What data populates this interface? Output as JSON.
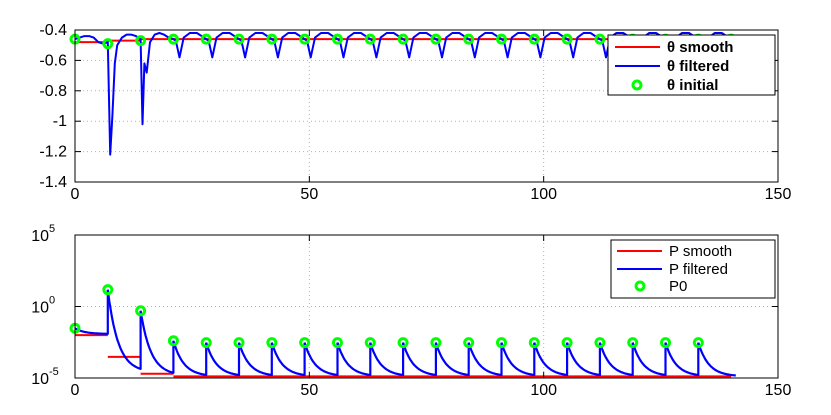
{
  "chart_data": [
    {
      "type": "line",
      "title": "",
      "xlabel": "",
      "ylabel": "",
      "xlim": [
        0,
        150
      ],
      "ylim": [
        -1.4,
        -0.4
      ],
      "xticks": [
        0,
        50,
        100,
        150
      ],
      "yticks": [
        -1.4,
        -1.2,
        -1,
        -0.8,
        -0.6,
        -0.4
      ],
      "ytick_labels": [
        "-1.4",
        "-1.2",
        "-1",
        "-0.8",
        "-0.6",
        "-0.4"
      ],
      "grid": true,
      "legend_position": "top-right",
      "series": [
        {
          "name": "θ smooth",
          "style": "step",
          "segments": [
            {
              "x0": 0,
              "x1": 7,
              "y": -0.48
            },
            {
              "x0": 7,
              "x1": 14,
              "y": -0.47
            },
            {
              "x0": 14,
              "x1": 142,
              "y": -0.46
            }
          ]
        },
        {
          "name": "θ filtered",
          "points": [
            [
              0,
              -0.46
            ],
            [
              1,
              -0.45
            ],
            [
              2,
              -0.44
            ],
            [
              3,
              -0.44
            ],
            [
              4,
              -0.45
            ],
            [
              5,
              -0.48
            ],
            [
              6,
              -0.49
            ],
            [
              7,
              -0.48
            ],
            [
              7.5,
              -1.22
            ],
            [
              8,
              -0.95
            ],
            [
              8.5,
              -0.62
            ],
            [
              9,
              -0.5
            ],
            [
              10,
              -0.45
            ],
            [
              11,
              -0.43
            ],
            [
              12,
              -0.43
            ],
            [
              13,
              -0.44
            ],
            [
              14,
              -0.46
            ],
            [
              14.4,
              -1.02
            ],
            [
              14.8,
              -0.62
            ],
            [
              15.3,
              -0.68
            ],
            [
              16,
              -0.48
            ],
            [
              17,
              -0.43
            ],
            [
              18,
              -0.42
            ],
            [
              19,
              -0.43
            ],
            [
              20,
              -0.45
            ],
            [
              21,
              -0.46
            ],
            [
              21.5,
              -0.47
            ],
            [
              22.3,
              -0.58
            ],
            [
              23.2,
              -0.45
            ],
            [
              24.5,
              -0.42
            ],
            [
              26,
              -0.42
            ],
            [
              27.5,
              -0.45
            ],
            [
              28,
              -0.46
            ],
            [
              28.5,
              -0.47
            ],
            [
              29.3,
              -0.58
            ],
            [
              30.2,
              -0.45
            ],
            [
              31.5,
              -0.42
            ],
            [
              33,
              -0.42
            ],
            [
              34.5,
              -0.45
            ],
            [
              35,
              -0.46
            ],
            [
              35.5,
              -0.47
            ],
            [
              36.3,
              -0.58
            ],
            [
              37.2,
              -0.45
            ],
            [
              38.5,
              -0.42
            ],
            [
              40,
              -0.42
            ],
            [
              41.5,
              -0.45
            ],
            [
              42,
              -0.46
            ],
            [
              42.5,
              -0.47
            ],
            [
              43.3,
              -0.58
            ],
            [
              44.2,
              -0.45
            ],
            [
              45.5,
              -0.42
            ],
            [
              47,
              -0.42
            ],
            [
              48.5,
              -0.45
            ],
            [
              49,
              -0.46
            ],
            [
              49.5,
              -0.47
            ],
            [
              50.3,
              -0.58
            ],
            [
              51.2,
              -0.45
            ],
            [
              52.5,
              -0.42
            ],
            [
              54,
              -0.42
            ],
            [
              55.5,
              -0.45
            ],
            [
              56,
              -0.46
            ],
            [
              56.5,
              -0.47
            ],
            [
              57.3,
              -0.58
            ],
            [
              58.2,
              -0.45
            ],
            [
              59.5,
              -0.42
            ],
            [
              61,
              -0.42
            ],
            [
              62.5,
              -0.45
            ],
            [
              63,
              -0.46
            ],
            [
              63.5,
              -0.47
            ],
            [
              64.3,
              -0.58
            ],
            [
              65.2,
              -0.45
            ],
            [
              66.5,
              -0.42
            ],
            [
              68,
              -0.42
            ],
            [
              69.5,
              -0.45
            ],
            [
              70,
              -0.46
            ],
            [
              70.5,
              -0.47
            ],
            [
              71.3,
              -0.58
            ],
            [
              72.2,
              -0.45
            ],
            [
              73.5,
              -0.42
            ],
            [
              75,
              -0.42
            ],
            [
              76.5,
              -0.45
            ],
            [
              77,
              -0.46
            ],
            [
              77.5,
              -0.47
            ],
            [
              78.3,
              -0.58
            ],
            [
              79.2,
              -0.45
            ],
            [
              80.5,
              -0.42
            ],
            [
              82,
              -0.42
            ],
            [
              83.5,
              -0.45
            ],
            [
              84,
              -0.46
            ],
            [
              84.5,
              -0.47
            ],
            [
              85.3,
              -0.58
            ],
            [
              86.2,
              -0.45
            ],
            [
              87.5,
              -0.42
            ],
            [
              89,
              -0.42
            ],
            [
              90.5,
              -0.45
            ],
            [
              91,
              -0.46
            ],
            [
              91.5,
              -0.47
            ],
            [
              92.3,
              -0.58
            ],
            [
              93.2,
              -0.45
            ],
            [
              94.5,
              -0.42
            ],
            [
              96,
              -0.42
            ],
            [
              97.5,
              -0.45
            ],
            [
              98,
              -0.46
            ],
            [
              98.5,
              -0.47
            ],
            [
              99.3,
              -0.58
            ],
            [
              100.2,
              -0.45
            ],
            [
              101.5,
              -0.42
            ],
            [
              103,
              -0.42
            ],
            [
              104.5,
              -0.45
            ],
            [
              105,
              -0.46
            ],
            [
              105.5,
              -0.47
            ],
            [
              106.3,
              -0.58
            ],
            [
              107.2,
              -0.45
            ],
            [
              108.5,
              -0.42
            ],
            [
              110,
              -0.42
            ],
            [
              111.5,
              -0.45
            ],
            [
              112,
              -0.46
            ],
            [
              112.5,
              -0.47
            ],
            [
              113.3,
              -0.58
            ],
            [
              114.2,
              -0.45
            ],
            [
              115.5,
              -0.42
            ],
            [
              117,
              -0.42
            ],
            [
              118.5,
              -0.45
            ],
            [
              119,
              -0.46
            ],
            [
              119.5,
              -0.47
            ],
            [
              120.3,
              -0.58
            ],
            [
              121.2,
              -0.45
            ],
            [
              122.5,
              -0.42
            ],
            [
              124,
              -0.42
            ],
            [
              125.5,
              -0.45
            ],
            [
              126,
              -0.46
            ],
            [
              126.5,
              -0.47
            ],
            [
              127.3,
              -0.58
            ],
            [
              128.2,
              -0.45
            ],
            [
              129.5,
              -0.42
            ],
            [
              131,
              -0.42
            ],
            [
              132.5,
              -0.45
            ],
            [
              133,
              -0.46
            ],
            [
              133.5,
              -0.47
            ],
            [
              134.3,
              -0.58
            ],
            [
              135.2,
              -0.45
            ],
            [
              136.5,
              -0.42
            ],
            [
              138,
              -0.42
            ],
            [
              139.5,
              -0.45
            ],
            [
              140,
              -0.46
            ],
            [
              141,
              -0.46
            ]
          ]
        },
        {
          "name": "θ initial",
          "marker": "circle",
          "x": [
            0,
            7,
            14,
            21,
            28,
            35,
            42,
            49,
            56,
            63,
            70,
            77,
            84,
            91,
            98,
            105,
            112,
            119,
            126,
            133,
            140
          ],
          "y": [
            -0.46,
            -0.49,
            -0.47,
            -0.46,
            -0.46,
            -0.46,
            -0.46,
            -0.46,
            -0.46,
            -0.46,
            -0.46,
            -0.46,
            -0.46,
            -0.46,
            -0.46,
            -0.46,
            -0.46,
            -0.46,
            -0.46,
            -0.46,
            -0.46
          ]
        }
      ]
    },
    {
      "type": "line",
      "title": "",
      "xlabel": "",
      "ylabel": "",
      "xlim": [
        0,
        150
      ],
      "ylim": [
        1e-05,
        100000
      ],
      "yscale": "log",
      "xticks": [
        0,
        50,
        100,
        150
      ],
      "yticks": [
        1e-05,
        1,
        100000
      ],
      "ytick_labels": [
        {
          "base": "10",
          "exp": "-5"
        },
        {
          "base": "10",
          "exp": "0"
        },
        {
          "base": "10",
          "exp": "5"
        }
      ],
      "grid": true,
      "legend_position": "top-right",
      "series": [
        {
          "name": "P smooth",
          "style": "step",
          "segments": [
            {
              "x0": 0,
              "x1": 7,
              "y": 0.01
            },
            {
              "x0": 7,
              "x1": 14,
              "y": 0.0003
            },
            {
              "x0": 14,
              "x1": 21,
              "y": 2e-05
            },
            {
              "x0": 21,
              "x1": 140,
              "y": 1.3e-05
            }
          ]
        },
        {
          "name": "P filtered",
          "decays": [
            {
              "x0": 0,
              "y0": 0.03,
              "ymin": 0.012,
              "k": 2.0
            },
            {
              "x0": 7,
              "y0": 15,
              "ymin": 2.5e-05,
              "k": 2.2
            },
            {
              "x0": 14,
              "y0": 0.5,
              "ymin": 1.5e-05,
              "k": 2.2
            },
            {
              "x0": 21,
              "y0": 0.004,
              "ymin": 1.3e-05,
              "k": 2.2
            },
            {
              "x0": 28,
              "y0": 0.003,
              "ymin": 1.3e-05,
              "k": 2.2
            },
            {
              "x0": 35,
              "y0": 0.003,
              "ymin": 1.3e-05,
              "k": 2.2
            },
            {
              "x0": 42,
              "y0": 0.003,
              "ymin": 1.3e-05,
              "k": 2.2
            },
            {
              "x0": 49,
              "y0": 0.003,
              "ymin": 1.3e-05,
              "k": 2.2
            },
            {
              "x0": 56,
              "y0": 0.003,
              "ymin": 1.3e-05,
              "k": 2.2
            },
            {
              "x0": 63,
              "y0": 0.003,
              "ymin": 1.3e-05,
              "k": 2.2
            },
            {
              "x0": 70,
              "y0": 0.003,
              "ymin": 1.3e-05,
              "k": 2.2
            },
            {
              "x0": 77,
              "y0": 0.003,
              "ymin": 1.3e-05,
              "k": 2.2
            },
            {
              "x0": 84,
              "y0": 0.003,
              "ymin": 1.3e-05,
              "k": 2.2
            },
            {
              "x0": 91,
              "y0": 0.003,
              "ymin": 1.3e-05,
              "k": 2.2
            },
            {
              "x0": 98,
              "y0": 0.003,
              "ymin": 1.3e-05,
              "k": 2.2
            },
            {
              "x0": 105,
              "y0": 0.003,
              "ymin": 1.3e-05,
              "k": 2.2
            },
            {
              "x0": 112,
              "y0": 0.003,
              "ymin": 1.3e-05,
              "k": 2.2
            },
            {
              "x0": 119,
              "y0": 0.003,
              "ymin": 1.3e-05,
              "k": 2.2
            },
            {
              "x0": 126,
              "y0": 0.003,
              "ymin": 1.3e-05,
              "k": 2.2
            },
            {
              "x0": 133,
              "y0": 0.003,
              "ymin": 1.3e-05,
              "k": 2.2
            }
          ],
          "end_x": 141
        },
        {
          "name": "P0",
          "marker": "circle",
          "x": [
            0,
            7,
            14,
            21,
            28,
            35,
            42,
            49,
            56,
            63,
            70,
            77,
            84,
            91,
            98,
            105,
            112,
            119,
            126,
            133
          ],
          "y": [
            0.03,
            15,
            0.5,
            0.004,
            0.003,
            0.003,
            0.003,
            0.003,
            0.003,
            0.003,
            0.003,
            0.003,
            0.003,
            0.003,
            0.003,
            0.003,
            0.003,
            0.003,
            0.003,
            0.003
          ]
        }
      ]
    }
  ],
  "colors": {
    "smooth": "#ff0000",
    "filtered": "#0000ff",
    "initial": "#00ff00",
    "grid": "#b4b4b4",
    "axes": "#000000"
  }
}
